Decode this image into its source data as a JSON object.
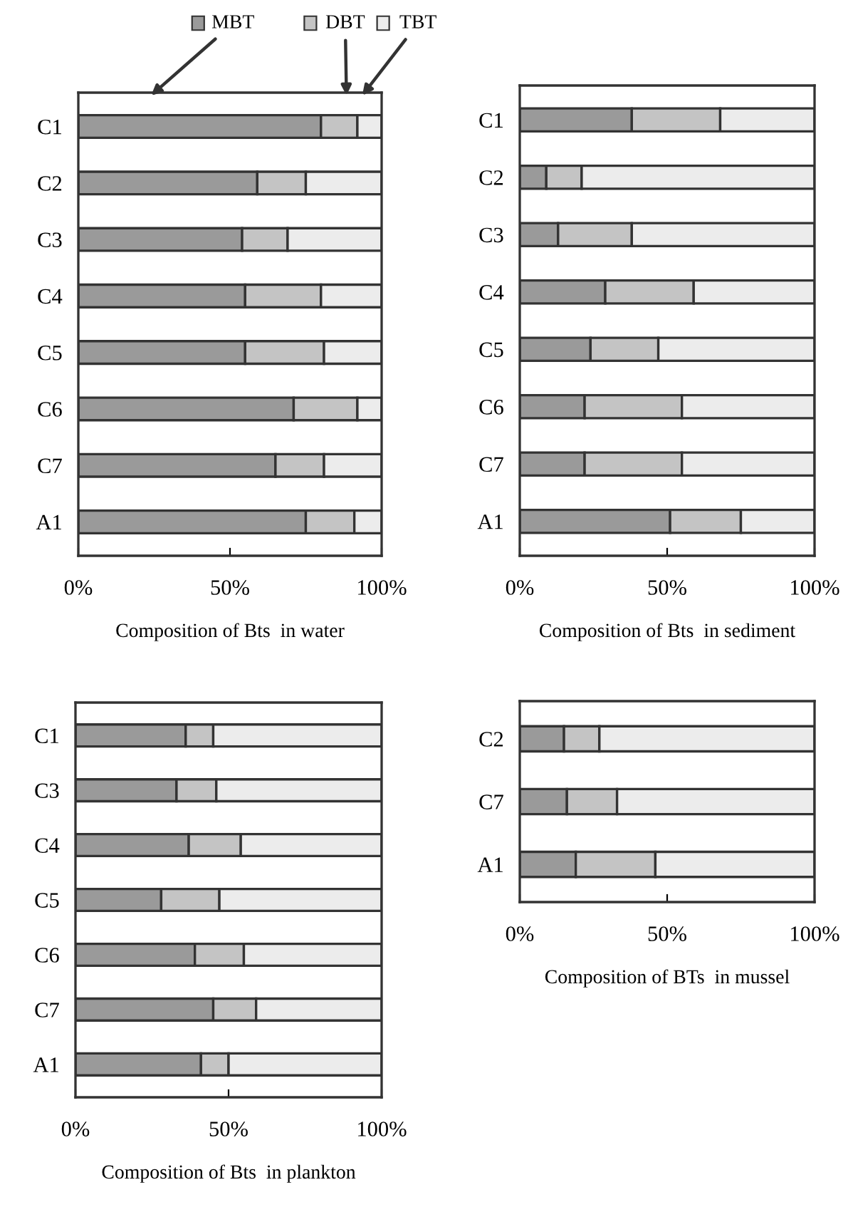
{
  "chart_data": [
    {
      "type": "bar",
      "orientation": "horizontal",
      "stacked": true,
      "xlabel": "Composition of Bts  in water",
      "legend": "top",
      "categories": [
        "C1",
        "C2",
        "C3",
        "C4",
        "C5",
        "C6",
        "C7",
        "A1"
      ],
      "series": [
        {
          "name": "MBT",
          "color": "#9a9a9a",
          "values": [
            80,
            59,
            54,
            55,
            55,
            71,
            65,
            75
          ]
        },
        {
          "name": "DBT",
          "color": "#c4c4c4",
          "values": [
            12,
            16,
            15,
            25,
            26,
            21,
            16,
            16
          ]
        },
        {
          "name": "TBT",
          "color": "#ececec",
          "values": [
            8,
            25,
            31,
            20,
            19,
            8,
            19,
            9
          ]
        }
      ],
      "xlim": [
        0,
        100
      ],
      "xticks": [
        {
          "value": 0,
          "label": "0%"
        },
        {
          "value": 50,
          "label": "50%"
        },
        {
          "value": 100,
          "label": "100%"
        }
      ]
    },
    {
      "type": "bar",
      "orientation": "horizontal",
      "stacked": true,
      "xlabel": "Composition of Bts  in sediment",
      "categories": [
        "C1",
        "C2",
        "C3",
        "C4",
        "C5",
        "C6",
        "C7",
        "A1"
      ],
      "series": [
        {
          "color": "#9a9a9a",
          "values": [
            38,
            9,
            13,
            29,
            24,
            22,
            22,
            51
          ]
        },
        {
          "color": "#c4c4c4",
          "values": [
            30,
            12,
            25,
            30,
            23,
            33,
            33,
            24
          ]
        },
        {
          "color": "#ececec",
          "values": [
            32,
            79,
            62,
            41,
            53,
            45,
            45,
            25
          ]
        }
      ],
      "xlim": [
        0,
        100
      ],
      "xticks": [
        {
          "value": 0,
          "label": "0%"
        },
        {
          "value": 50,
          "label": "50%"
        },
        {
          "value": 100,
          "label": "100%"
        }
      ]
    },
    {
      "type": "bar",
      "orientation": "horizontal",
      "stacked": true,
      "xlabel": "Composition of Bts  in plankton",
      "categories": [
        "C1",
        "C3",
        "C4",
        "C5",
        "C6",
        "C7",
        "A1"
      ],
      "series": [
        {
          "color": "#9a9a9a",
          "values": [
            36,
            33,
            37,
            28,
            39,
            45,
            41
          ]
        },
        {
          "color": "#c4c4c4",
          "values": [
            9,
            13,
            17,
            19,
            16,
            14,
            9
          ]
        },
        {
          "color": "#ececec",
          "values": [
            55,
            54,
            46,
            53,
            45,
            41,
            50
          ]
        }
      ],
      "xlim": [
        0,
        100
      ],
      "xticks": [
        {
          "value": 0,
          "label": "0%"
        },
        {
          "value": 50,
          "label": "50%"
        },
        {
          "value": 100,
          "label": "100%"
        }
      ]
    },
    {
      "type": "bar",
      "orientation": "horizontal",
      "stacked": true,
      "xlabel": "Composition of BTs  in mussel",
      "categories": [
        "C2",
        "C7",
        "A1"
      ],
      "series": [
        {
          "color": "#9a9a9a",
          "values": [
            15,
            16,
            19
          ]
        },
        {
          "color": "#c4c4c4",
          "values": [
            12,
            17,
            27
          ]
        },
        {
          "color": "#ececec",
          "values": [
            73,
            67,
            54
          ]
        }
      ],
      "xlim": [
        0,
        100
      ],
      "xticks": [
        {
          "value": 0,
          "label": "0%"
        },
        {
          "value": 50,
          "label": "50%"
        },
        {
          "value": 100,
          "label": "100%"
        }
      ]
    }
  ]
}
